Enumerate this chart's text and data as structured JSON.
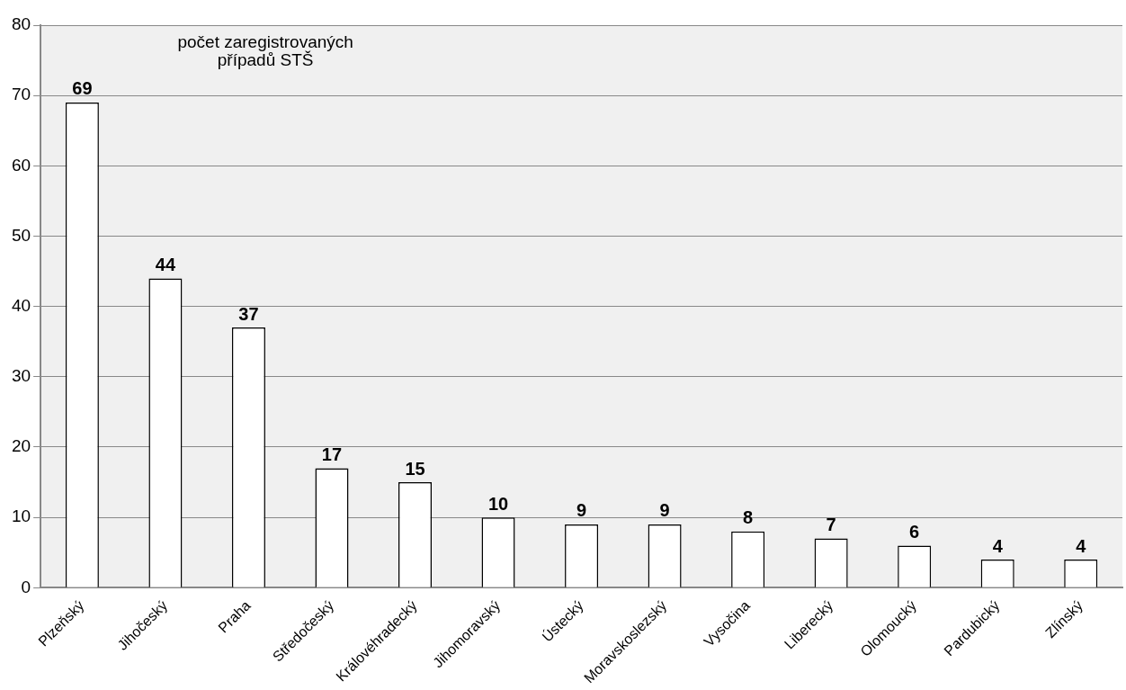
{
  "chart_data": {
    "type": "bar",
    "categories": [
      "Plzeňský",
      "Jihočeský",
      "Praha",
      "Středočeský",
      "Královéhradecký",
      "Jihomoravský",
      "Ústecký",
      "Moravskoslezský",
      "Vysočina",
      "Liberecký",
      "Olomoucký",
      "Pardubický",
      "Zlínský"
    ],
    "values": [
      69,
      44,
      37,
      17,
      15,
      10,
      9,
      9,
      8,
      7,
      6,
      4,
      4
    ],
    "color": "#ffffff",
    "ylim": [
      0,
      80
    ],
    "yticks": [
      0,
      10,
      20,
      30,
      40,
      50,
      60,
      70,
      80
    ],
    "grid": "y",
    "data_labels": true,
    "legend": false,
    "annotations": [
      "počet zaregistrovaných\npřípadů STŠ"
    ]
  }
}
